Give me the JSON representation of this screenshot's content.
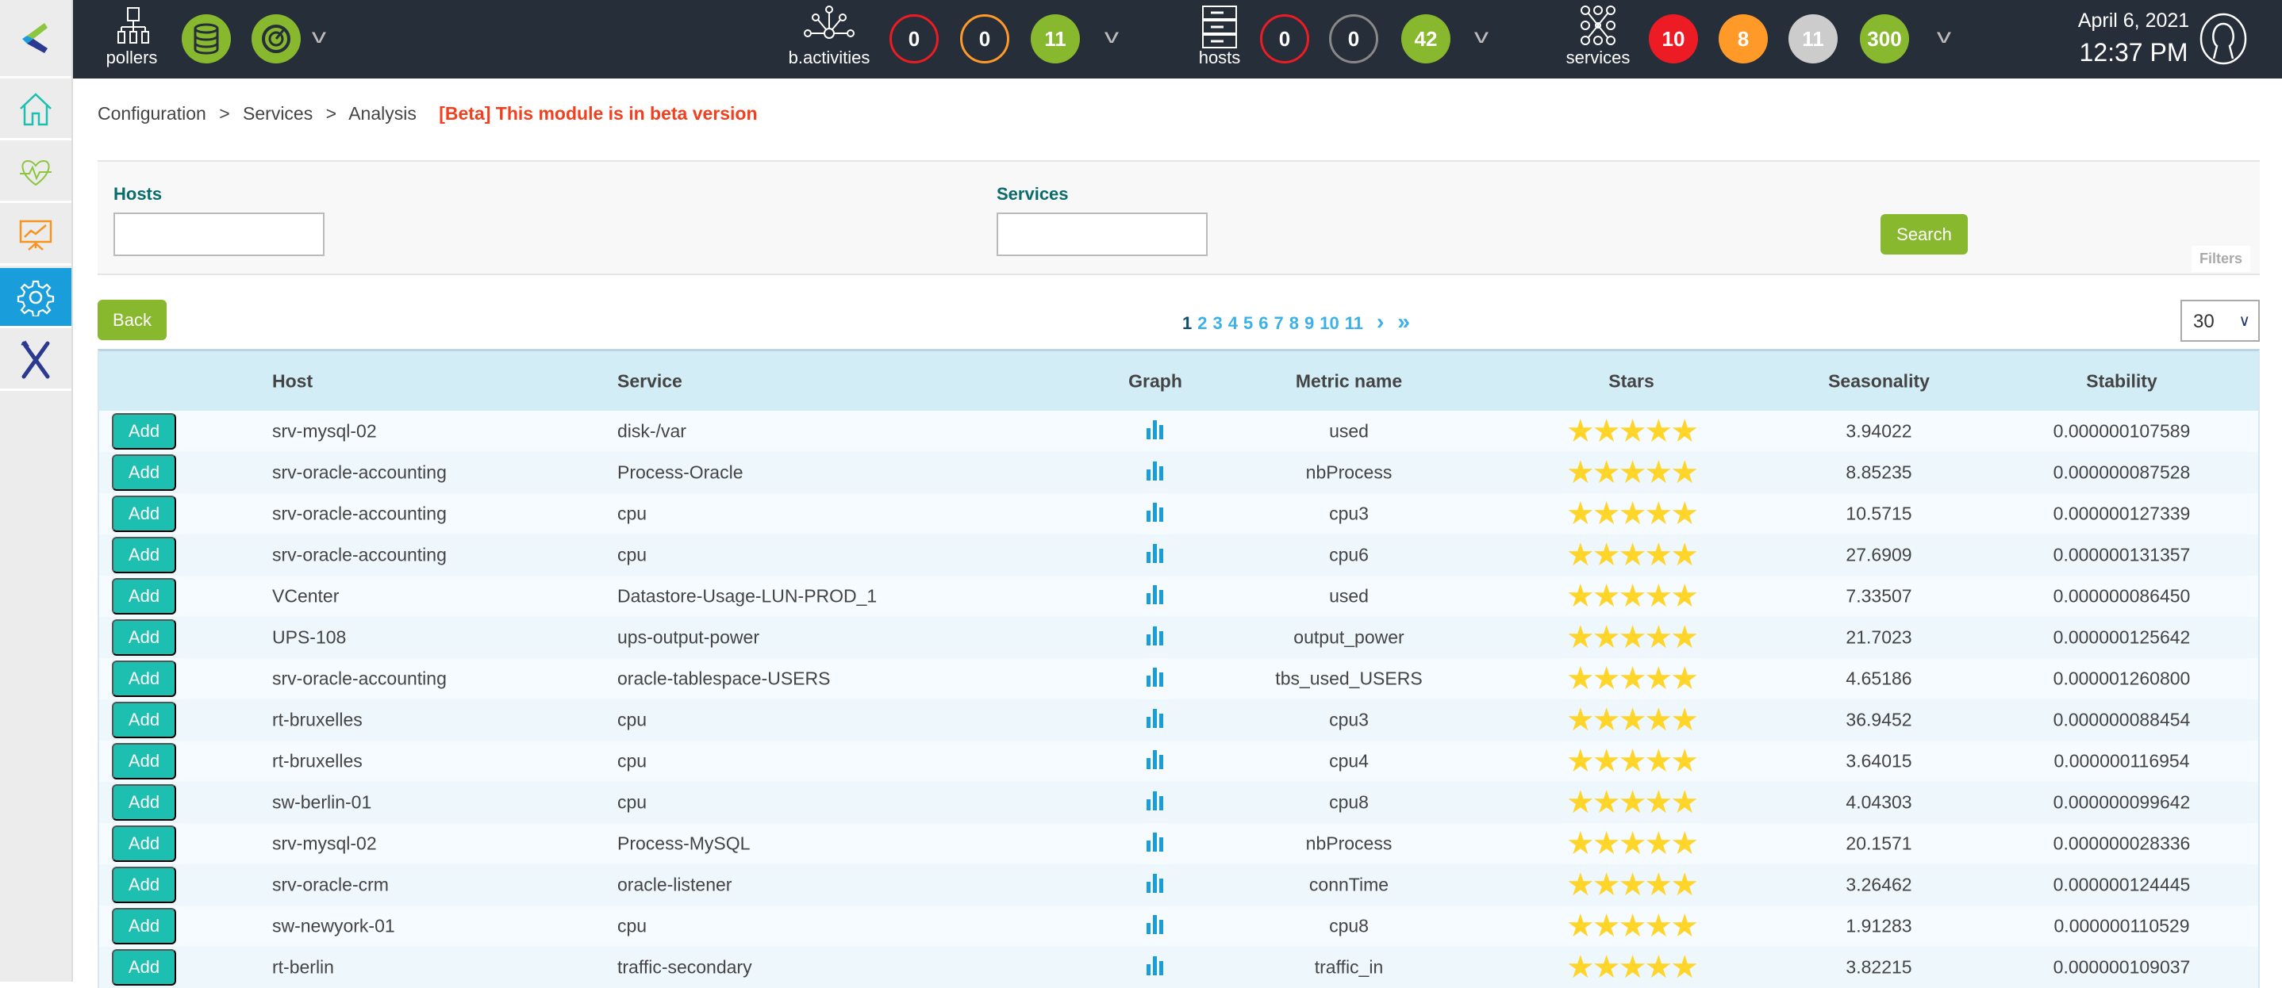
{
  "topbar": {
    "pollers_label": "pollers",
    "bactivities": {
      "label": "b.activities",
      "counts": [
        "0",
        "0",
        "11"
      ]
    },
    "hosts": {
      "label": "hosts",
      "counts": [
        "0",
        "0",
        "42"
      ]
    },
    "services": {
      "label": "services",
      "counts": [
        "10",
        "8",
        "11",
        "300"
      ]
    },
    "date": "April 6, 2021",
    "time": "12:37 PM",
    "colors": {
      "critical": "#ed1c24",
      "warning": "#ff9a28",
      "unknown": "#cccccc",
      "ok": "#88b82d",
      "pending": "#888888"
    }
  },
  "sidebar": {
    "items": [
      "home-icon",
      "monitoring-icon",
      "reporting-icon",
      "configuration-icon",
      "administration-icon"
    ],
    "active": "configuration-icon",
    "active_color": "#1a9edb"
  },
  "breadcrumb": {
    "items": [
      "Configuration",
      "Services",
      "Analysis"
    ],
    "sep": ">",
    "beta": "[Beta] This module is in beta version"
  },
  "filters": {
    "hosts_label": "Hosts",
    "hosts_value": "",
    "services_label": "Services",
    "services_value": "",
    "search": "Search",
    "tab": "Filters"
  },
  "back": "Back",
  "pagination": {
    "current": "1",
    "pages": [
      "1",
      "2",
      "3",
      "4",
      "5",
      "6",
      "7",
      "8",
      "9",
      "10",
      "11"
    ],
    "next": "›",
    "last": "»"
  },
  "per_page": "30",
  "table": {
    "headers": {
      "host": "Host",
      "service": "Service",
      "graph": "Graph",
      "metric": "Metric name",
      "stars": "Stars",
      "seasonality": "Seasonality",
      "stability": "Stability"
    },
    "add_label": "Add",
    "rows": [
      {
        "host": "srv-mysql-02",
        "service": "disk-/var",
        "metric": "used",
        "stars": 5,
        "seasonality": "3.94022",
        "stability": "0.000000107589"
      },
      {
        "host": "srv-oracle-accounting",
        "service": "Process-Oracle",
        "metric": "nbProcess",
        "stars": 5,
        "seasonality": "8.85235",
        "stability": "0.000000087528"
      },
      {
        "host": "srv-oracle-accounting",
        "service": "cpu",
        "metric": "cpu3",
        "stars": 5,
        "seasonality": "10.5715",
        "stability": "0.000000127339"
      },
      {
        "host": "srv-oracle-accounting",
        "service": "cpu",
        "metric": "cpu6",
        "stars": 5,
        "seasonality": "27.6909",
        "stability": "0.000000131357"
      },
      {
        "host": "VCenter",
        "service": "Datastore-Usage-LUN-PROD_1",
        "metric": "used",
        "stars": 5,
        "seasonality": "7.33507",
        "stability": "0.000000086450"
      },
      {
        "host": "UPS-108",
        "service": "ups-output-power",
        "metric": "output_power",
        "stars": 5,
        "seasonality": "21.7023",
        "stability": "0.000000125642"
      },
      {
        "host": "srv-oracle-accounting",
        "service": "oracle-tablespace-USERS",
        "metric": "tbs_used_USERS",
        "stars": 5,
        "seasonality": "4.65186",
        "stability": "0.000001260800"
      },
      {
        "host": "rt-bruxelles",
        "service": "cpu",
        "metric": "cpu3",
        "stars": 5,
        "seasonality": "36.9452",
        "stability": "0.000000088454"
      },
      {
        "host": "rt-bruxelles",
        "service": "cpu",
        "metric": "cpu4",
        "stars": 5,
        "seasonality": "3.64015",
        "stability": "0.000000116954"
      },
      {
        "host": "sw-berlin-01",
        "service": "cpu",
        "metric": "cpu8",
        "stars": 5,
        "seasonality": "4.04303",
        "stability": "0.000000099642"
      },
      {
        "host": "srv-mysql-02",
        "service": "Process-MySQL",
        "metric": "nbProcess",
        "stars": 5,
        "seasonality": "20.1571",
        "stability": "0.000000028336"
      },
      {
        "host": "srv-oracle-crm",
        "service": "oracle-listener",
        "metric": "connTime",
        "stars": 5,
        "seasonality": "3.26462",
        "stability": "0.000000124445"
      },
      {
        "host": "sw-newyork-01",
        "service": "cpu",
        "metric": "cpu8",
        "stars": 5,
        "seasonality": "1.91283",
        "stability": "0.000000110529"
      },
      {
        "host": "rt-berlin",
        "service": "traffic-secondary",
        "metric": "traffic_in",
        "stars": 5,
        "seasonality": "3.82215",
        "stability": "0.000000109037"
      }
    ]
  }
}
